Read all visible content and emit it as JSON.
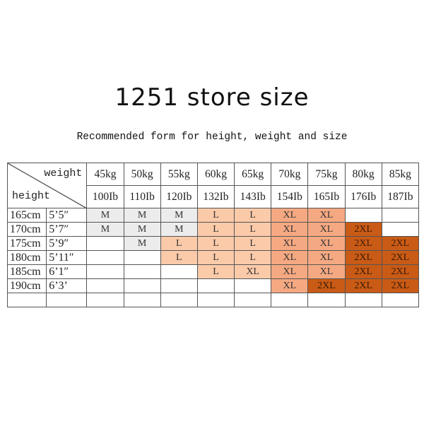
{
  "watermark": "1251 store",
  "title": "1251 store size",
  "subtitle": "Recommended form for height, weight and size",
  "table": {
    "corner_weight": "weight",
    "corner_height": "height",
    "weights_kg": [
      "45kg",
      "50kg",
      "55kg",
      "60kg",
      "65kg",
      "70kg",
      "75kg",
      "80kg",
      "85kg"
    ],
    "weights_lb": [
      "100Ib",
      "110Ib",
      "120Ib",
      "132Ib",
      "143Ib",
      "154Ib",
      "165Ib",
      "176Ib",
      "187Ib"
    ],
    "rows": [
      {
        "cm": "165cm",
        "ft": "5’5″",
        "sizes": [
          "M",
          "M",
          "M",
          "L",
          "L",
          "XL",
          "XL",
          "",
          ""
        ]
      },
      {
        "cm": "170cm",
        "ft": "5’7″",
        "sizes": [
          "M",
          "M",
          "M",
          "L",
          "L",
          "XL",
          "XL",
          "2XL",
          ""
        ]
      },
      {
        "cm": "175cm",
        "ft": "5’9″",
        "sizes": [
          "",
          "M",
          "L",
          "L",
          "L",
          "XL",
          "XL",
          "2XL",
          "2XL"
        ]
      },
      {
        "cm": "180cm",
        "ft": "5’11″",
        "sizes": [
          "",
          "",
          "L",
          "L",
          "L",
          "XL",
          "XL",
          "2XL",
          "2XL"
        ]
      },
      {
        "cm": "185cm",
        "ft": "6’1″",
        "sizes": [
          "",
          "",
          "",
          "L",
          "XL",
          "XL",
          "XL",
          "2XL",
          "2XL"
        ]
      },
      {
        "cm": "190cm",
        "ft": "6’3’",
        "sizes": [
          "",
          "",
          "",
          "",
          "",
          "XL",
          "2XL",
          "2XL",
          "2XL"
        ]
      },
      {
        "cm": "",
        "ft": "",
        "sizes": [
          "",
          "",
          "",
          "",
          "",
          "",
          "",
          "",
          ""
        ]
      }
    ],
    "size_colors": {
      "M": "#ececec",
      "L": "#fbcaa9",
      "XL": "#f5a982",
      "2XL": "#c95b16"
    },
    "fill_overrides": [
      {
        "row": 4,
        "col": 4,
        "fill": "#fbcaa9"
      }
    ]
  }
}
